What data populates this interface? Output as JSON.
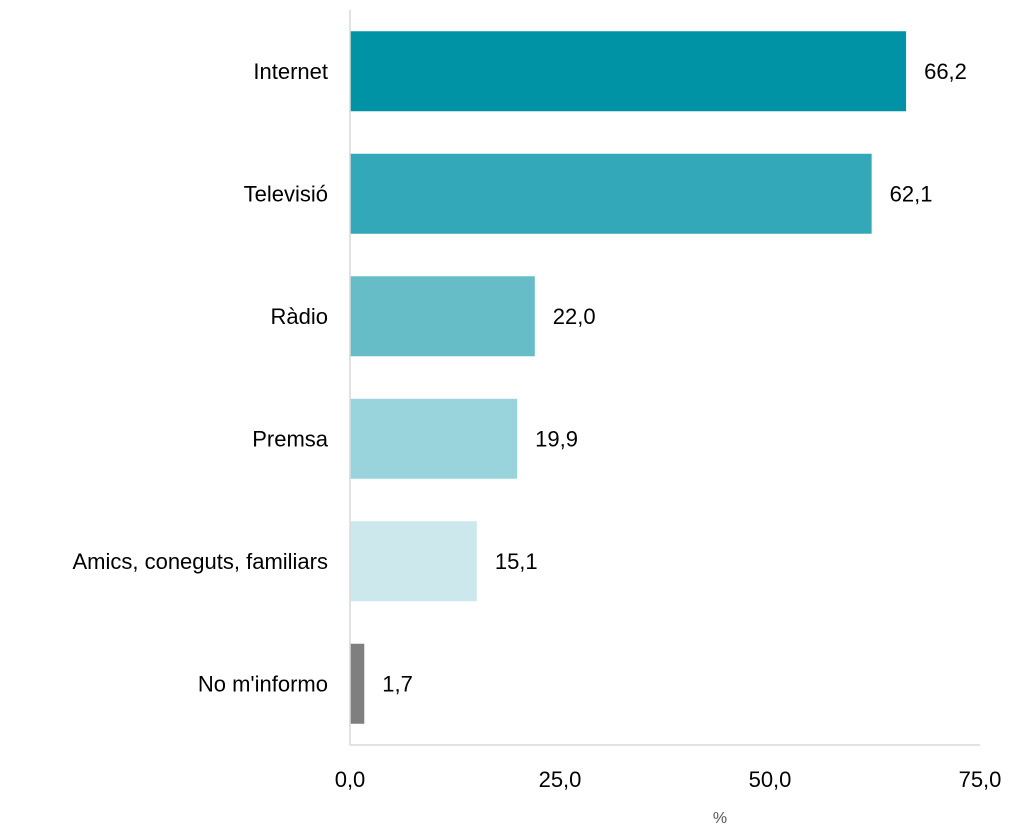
{
  "chart_data": {
    "type": "bar",
    "orientation": "horizontal",
    "categories": [
      "Internet",
      "Televisió",
      "Ràdio",
      "Premsa",
      "Amics, coneguts, familiars",
      "No m'informo"
    ],
    "values": [
      66.2,
      62.1,
      22.0,
      19.9,
      15.1,
      1.7
    ],
    "value_labels": [
      "66,2",
      "62,1",
      "22,0",
      "19,9",
      "15,1",
      "1,7"
    ],
    "bar_colors": [
      "#0093a5",
      "#33a8b8",
      "#66bdc8",
      "#99d3dc",
      "#cce8ed",
      "#7f7f7f"
    ],
    "xlim": [
      0,
      75
    ],
    "x_ticks": [
      0,
      25,
      50,
      75
    ],
    "x_tick_labels": [
      "0,0",
      "25,0",
      "50,0",
      "75,0"
    ],
    "xlabel": "%",
    "ylabel": "",
    "title": "",
    "grid": false,
    "axis_color": "#d9d9d9"
  }
}
